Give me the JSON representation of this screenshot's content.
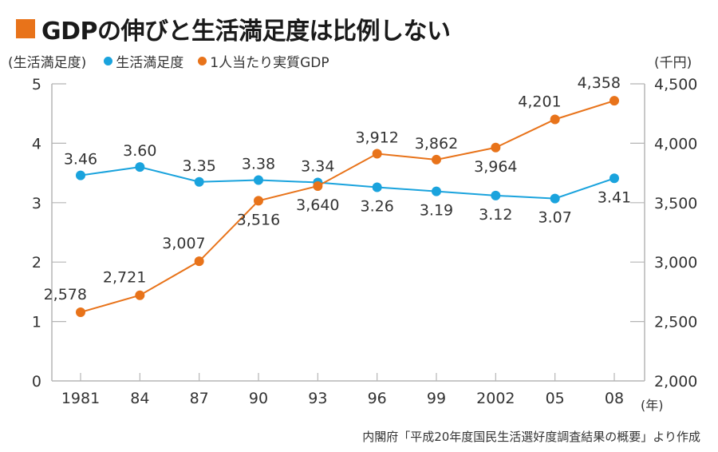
{
  "header": {
    "title": "GDPの伸びと生活満足度は比例しない"
  },
  "footer": {
    "source": "内閣府「平成20年度国民生活選好度調査結果の概要」より作成"
  },
  "chart_data": {
    "type": "line",
    "title": "GDPの伸びと生活満足度は比例しない",
    "xlabel": "(年)",
    "ylabel_left": "(生活満足度)",
    "ylabel_right": "(千円)",
    "categories": [
      "1981",
      "84",
      "87",
      "90",
      "93",
      "96",
      "99",
      "2002",
      "05",
      "08"
    ],
    "left_axis": {
      "min": 0,
      "max": 5,
      "ticks": [
        "0",
        "1",
        "2",
        "3",
        "4",
        "5"
      ]
    },
    "right_axis": {
      "min": 2000,
      "max": 4500,
      "ticks": [
        "2,000",
        "2,500",
        "3,000",
        "3,500",
        "4,000",
        "4,500"
      ]
    },
    "legend_placement": "top-left",
    "grid": false,
    "series": [
      {
        "name": "生活満足度",
        "axis": "left",
        "color": "#1aa3dd",
        "values": [
          3.46,
          3.6,
          3.35,
          3.38,
          3.34,
          3.26,
          3.19,
          3.12,
          3.07,
          3.41
        ],
        "labels": [
          "3.46",
          "3.60",
          "3.35",
          "3.38",
          "3.34",
          "3.26",
          "3.19",
          "3.12",
          "3.07",
          "3.41"
        ],
        "label_pos": [
          "above",
          "above",
          "above",
          "above",
          "above",
          "below",
          "below",
          "below",
          "below",
          "below"
        ]
      },
      {
        "name": "1人当たり実質GDP",
        "axis": "right",
        "color": "#e8731a",
        "values": [
          2578,
          2721,
          3007,
          3516,
          3640,
          3912,
          3862,
          3964,
          4201,
          4358
        ],
        "labels": [
          "2,578",
          "2,721",
          "3,007",
          "3,516",
          "3,640",
          "3,912",
          "3,862",
          "3,964",
          "4,201",
          "4,358"
        ],
        "label_pos": [
          "above-left",
          "above-left",
          "above-left",
          "below",
          "below",
          "above",
          "above",
          "below",
          "above-left",
          "above-left"
        ]
      }
    ]
  }
}
